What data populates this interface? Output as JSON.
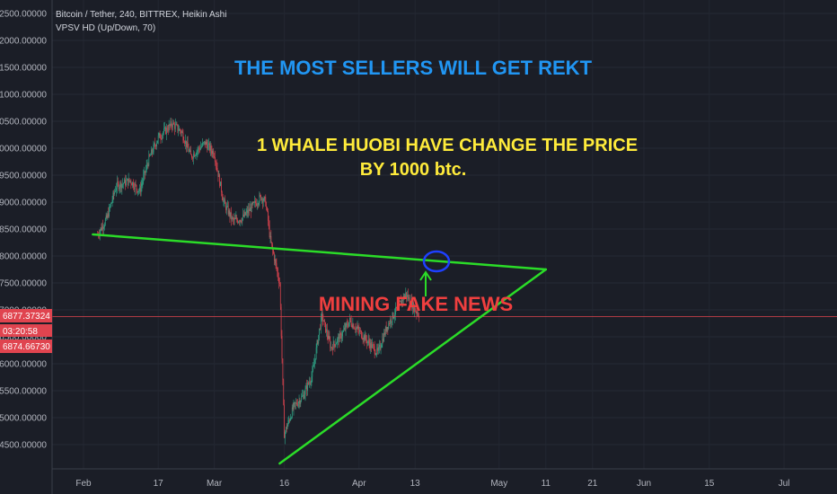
{
  "legend": {
    "symbol_line": "Bitcoin / Tether, 240, BITTREX, Heikin Ashi",
    "indicator_line": "VPSV HD (Up/Down, 70)"
  },
  "annotations": {
    "headline": "THE MOST SELLERS WILL GET REKT",
    "whale_line1": "1 WHALE  HUOBI HAVE CHANGE THE PRICE",
    "whale_line2": "BY 1000 btc.",
    "mining": "MINING FAKE NEWS"
  },
  "price_tags": {
    "current": "6877.37324",
    "countdown": "03:20:58",
    "secondary": "6874.66730"
  },
  "colors": {
    "background": "#1b1e27",
    "up_candle": "#2fa889",
    "down_candle": "#e0444f",
    "trendline": "#2bdc28",
    "headline": "#2196f3",
    "whale_text": "#ffeb3b",
    "mining_text": "#ef3f3f",
    "price_line": "#e0444f",
    "circle": "#1e40ff"
  },
  "chart_data": {
    "type": "candlestick",
    "y_ticks": [
      "12500.00000",
      "12000.00000",
      "11500.00000",
      "11000.00000",
      "10500.00000",
      "10000.00000",
      "9500.00000",
      "9000.00000",
      "8500.00000",
      "8000.00000",
      "7500.00000",
      "7000.00000",
      "6500.00000",
      "6000.00000",
      "5500.00000",
      "5000.00000",
      "4500.00000"
    ],
    "x_ticks": [
      "Feb",
      "17",
      "Mar",
      "16",
      "Apr",
      "13",
      "May",
      "11",
      "21",
      "Jun",
      "15",
      "Jul"
    ],
    "ylim": [
      4150,
      12650
    ],
    "price_path": [
      [
        "2018-02-04",
        8400
      ],
      [
        "2018-02-06",
        8700
      ],
      [
        "2018-02-08",
        9300
      ],
      [
        "2018-02-11",
        9400
      ],
      [
        "2018-02-13",
        9200
      ],
      [
        "2018-02-15",
        9800
      ],
      [
        "2018-02-17",
        10200
      ],
      [
        "2018-02-20",
        10450
      ],
      [
        "2018-02-22",
        10300
      ],
      [
        "2018-02-24",
        9850
      ],
      [
        "2018-02-27",
        10100
      ],
      [
        "2018-03-01",
        9900
      ],
      [
        "2018-03-03",
        9000
      ],
      [
        "2018-03-05",
        8650
      ],
      [
        "2018-03-07",
        8700
      ],
      [
        "2018-03-09",
        8900
      ],
      [
        "2018-03-11",
        9100
      ],
      [
        "2018-03-12",
        9000
      ],
      [
        "2018-03-13",
        8300
      ],
      [
        "2018-03-14",
        7900
      ],
      [
        "2018-03-15",
        7500
      ],
      [
        "2018-03-16",
        4700
      ],
      [
        "2018-03-18",
        5200
      ],
      [
        "2018-03-20",
        5400
      ],
      [
        "2018-03-22",
        5800
      ],
      [
        "2018-03-24",
        6900
      ],
      [
        "2018-03-26",
        6300
      ],
      [
        "2018-03-28",
        6500
      ],
      [
        "2018-03-30",
        6800
      ],
      [
        "2018-04-01",
        6600
      ],
      [
        "2018-04-03",
        6400
      ],
      [
        "2018-04-05",
        6200
      ],
      [
        "2018-04-07",
        6700
      ],
      [
        "2018-04-09",
        7000
      ],
      [
        "2018-04-11",
        7300
      ],
      [
        "2018-04-13",
        7000
      ],
      [
        "2018-04-14",
        6900
      ]
    ],
    "trendline_upper": [
      [
        "2018-02-03",
        8400
      ],
      [
        "2018-05-11",
        7750
      ]
    ],
    "trendline_lower": [
      [
        "2018-03-15",
        4150
      ],
      [
        "2018-05-11",
        7750
      ]
    ],
    "current_price": 6877.37324
  }
}
